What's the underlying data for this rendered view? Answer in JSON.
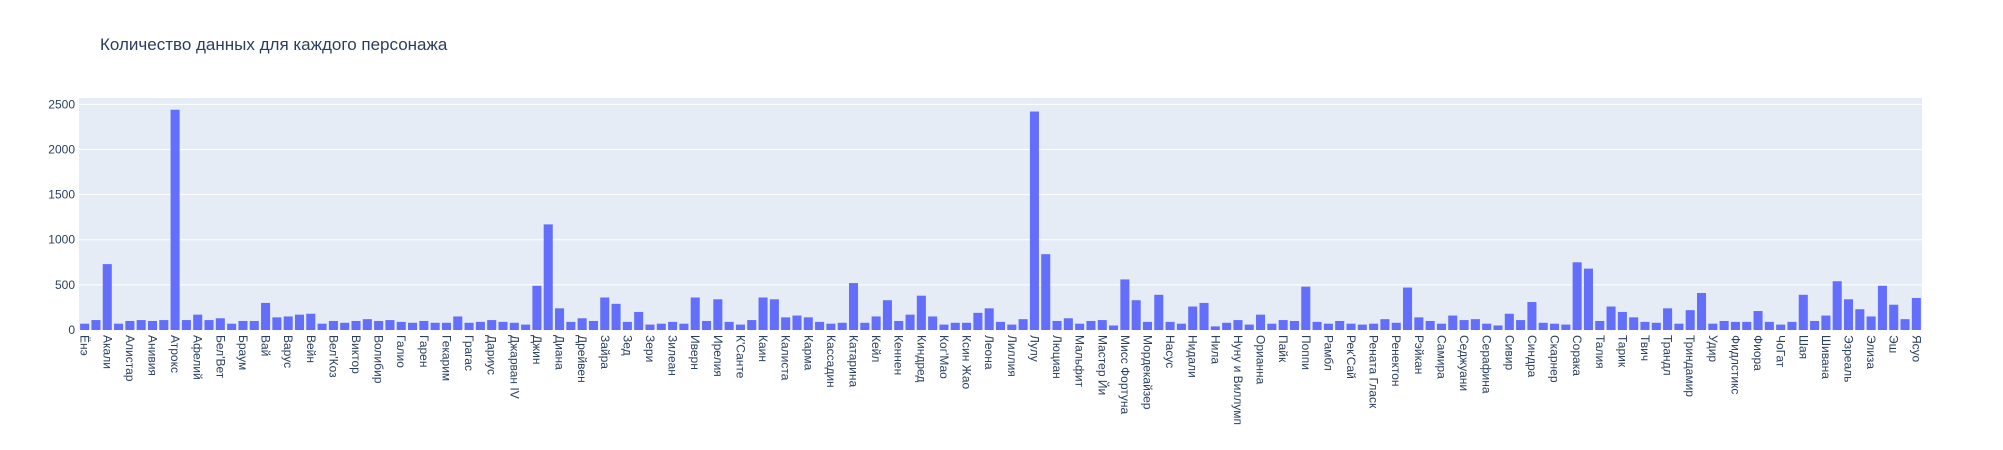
{
  "chart_data": {
    "type": "bar",
    "title": "Количество данных для каждого персонажа",
    "color": "#636efa",
    "grid": true,
    "ylim": [
      0,
      2570
    ],
    "yticks": [
      0,
      500,
      1000,
      1500,
      2000,
      2500
    ],
    "categories": [
      "Ёнэ",
      null,
      "Акали",
      null,
      "Алистар",
      null,
      "Анивия",
      null,
      "Атрокс",
      null,
      "Афелий",
      null,
      "Бел'Вет",
      null,
      "Браум",
      null,
      "Вай",
      null,
      "Варус",
      null,
      "Вейн",
      null,
      "Вел'Коз",
      null,
      "Виктор",
      null,
      "Волибир",
      null,
      "Галио",
      null,
      "Гарен",
      null,
      "Гекарим",
      null,
      "Грагас",
      null,
      "Дариус",
      null,
      "Джарван IV",
      null,
      "Джин",
      null,
      "Диана",
      null,
      "Дрейвен",
      null,
      "Зайра",
      null,
      "Зед",
      null,
      "Зери",
      null,
      "Зилеан",
      null,
      "Иверн",
      null,
      "Ирелия",
      null,
      "К'Санте",
      null,
      "Каин",
      null,
      "Калиста",
      null,
      "Карма",
      null,
      "Кассадин",
      null,
      "Катарина",
      null,
      "Кейл",
      null,
      "Кеннен",
      null,
      "Киндред",
      null,
      "Ког'Мао",
      null,
      "Ксин Жао",
      null,
      "Леона",
      null,
      "Лиллия",
      null,
      "Лулу",
      null,
      "Люциан",
      null,
      "Мальфит",
      null,
      "Мастер Йи",
      null,
      "Мисс Фортуна",
      null,
      "Мордекайзер",
      null,
      "Насус",
      null,
      "Нидали",
      null,
      "Нила",
      null,
      "Нуну и Виллумп",
      null,
      "Орианна",
      null,
      "Пайк",
      null,
      "Поппи",
      null,
      "Рамбл",
      null,
      "Рек'Сай",
      null,
      "Рената Гласк",
      null,
      "Ренектон",
      null,
      "Рэйкан",
      null,
      "Самира",
      null,
      "Седжуани",
      null,
      "Серафина",
      null,
      "Сивир",
      null,
      "Синдра",
      null,
      "Скарнер",
      null,
      "Сорака",
      null,
      "Талия",
      null,
      "Тарик",
      null,
      "Твич",
      null,
      "Трандл",
      null,
      "Триндамир",
      null,
      "Удир",
      null,
      "Фидлстикс",
      null,
      "Фиора",
      null,
      "ЧоГат",
      null,
      "Шая",
      null,
      "Шивана",
      null,
      "Эзреаль",
      null,
      "Элиза",
      null,
      "Эш",
      null,
      "Ясуо"
    ],
    "values": [
      70,
      110,
      730,
      70,
      100,
      110,
      100,
      110,
      2440,
      110,
      170,
      110,
      130,
      70,
      100,
      100,
      300,
      140,
      150,
      170,
      180,
      70,
      100,
      80,
      100,
      120,
      100,
      110,
      90,
      80,
      100,
      80,
      80,
      150,
      80,
      90,
      110,
      90,
      80,
      60,
      490,
      1170,
      240,
      90,
      130,
      100,
      360,
      290,
      90,
      200,
      60,
      70,
      90,
      70,
      360,
      100,
      340,
      90,
      60,
      110,
      360,
      340,
      140,
      160,
      140,
      90,
      70,
      80,
      520,
      80,
      150,
      330,
      100,
      170,
      380,
      150,
      60,
      80,
      80,
      190,
      240,
      90,
      60,
      120,
      2420,
      840,
      100,
      130,
      70,
      100,
      110,
      50,
      560,
      330,
      90,
      390,
      90,
      70,
      260,
      300,
      40,
      80,
      110,
      60,
      170,
      70,
      110,
      100,
      480,
      90,
      70,
      100,
      70,
      60,
      70,
      120,
      80,
      470,
      140,
      100,
      70,
      160,
      110,
      120,
      70,
      50,
      180,
      110,
      310,
      80,
      70,
      60,
      750,
      680,
      100,
      260,
      200,
      140,
      90,
      80,
      240,
      70,
      220,
      410,
      70,
      100,
      90,
      90,
      210,
      90,
      60,
      90,
      390,
      100,
      160,
      540,
      340,
      230,
      150,
      490,
      280,
      120,
      355
    ]
  }
}
